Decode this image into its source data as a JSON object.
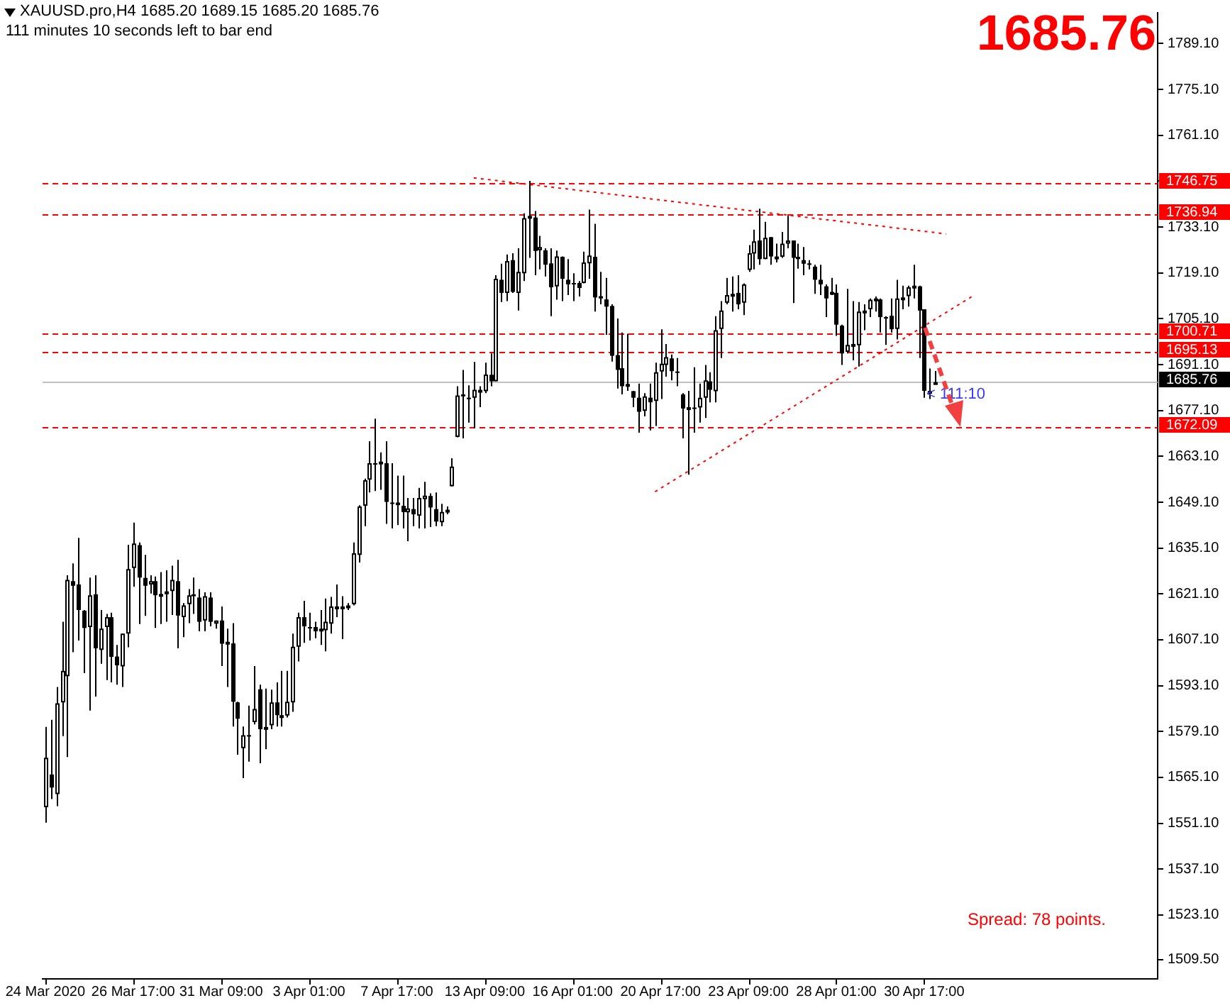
{
  "chart_data": {
    "type": "candlestick",
    "title": "XAUUSD.pro,H4  1685.20 1689.15 1685.20 1685.76",
    "subtitle": "111 minutes 10 seconds left to bar end",
    "color": "#000000",
    "categories": [
      "24 Mar 2020",
      null,
      null,
      null,
      null,
      null,
      null,
      null,
      null,
      null,
      null,
      null,
      null,
      null,
      null,
      null,
      "26 Mar 17:00",
      null,
      null,
      null,
      null,
      null,
      null,
      null,
      null,
      null,
      null,
      null,
      null,
      null,
      null,
      null,
      "31 Mar 09:00",
      null,
      null,
      null,
      null,
      null,
      null,
      null,
      null,
      null,
      null,
      null,
      null,
      null,
      null,
      null,
      "3 Apr 01:00",
      null,
      null,
      null,
      null,
      null,
      null,
      null,
      null,
      null,
      null,
      null,
      null,
      null,
      null,
      null,
      "7 Apr 17:00",
      null,
      null,
      null,
      null,
      null,
      null,
      null,
      null,
      null,
      null,
      null,
      null,
      null,
      null,
      null,
      "13 Apr 09:00",
      null,
      null,
      null,
      null,
      null,
      null,
      null,
      null,
      null,
      null,
      null,
      null,
      null,
      null,
      null,
      "16 Apr 01:00",
      null,
      null,
      null,
      null,
      null,
      null,
      null,
      null,
      null,
      null,
      null,
      null,
      null,
      null,
      null,
      "20 Apr 17:00",
      null,
      null,
      null,
      null,
      null,
      null,
      null,
      null,
      null,
      null,
      null,
      null,
      null,
      null,
      null,
      "23 Apr 09:00",
      null,
      null,
      null,
      null,
      null,
      null,
      null,
      null,
      null,
      null,
      null,
      null,
      null,
      null,
      null,
      "28 Apr 01:00",
      null,
      null,
      null,
      null,
      null,
      null,
      null,
      null,
      null,
      null,
      null,
      null,
      null,
      null,
      null,
      "30 Apr 17:00",
      null,
      null,
      null,
      null,
      null,
      null,
      null,
      null,
      null,
      null,
      null,
      null,
      null,
      null,
      null,
      null,
      null,
      null,
      null,
      null,
      null,
      null,
      null,
      null,
      null,
      null,
      null,
      null,
      null,
      null,
      null,
      null,
      null,
      null,
      null,
      null,
      null,
      null,
      null,
      null,
      null,
      null
    ],
    "ohlc": [
      [
        1556,
        1580.5,
        1551.3,
        1571.1
      ],
      [
        1566,
        1582.7,
        1558.5,
        1562
      ],
      [
        1560,
        1592.7,
        1556.3,
        1587.7
      ],
      [
        1588,
        1612.6,
        1577.7,
        1597.6
      ],
      [
        1596,
        1626.8,
        1571.3,
        1625.4
      ],
      [
        1625,
        1630.4,
        1603.3,
        1623.6
      ],
      [
        1624,
        1638.2,
        1606.9,
        1616.2
      ],
      [
        1616,
        1616.2,
        1596.9,
        1610.7
      ],
      [
        1611,
        1626.1,
        1585.5,
        1620.7
      ],
      [
        1621,
        1626.8,
        1589.8,
        1604.5
      ],
      [
        1604,
        1616.2,
        1599.8,
        1610.5
      ],
      [
        1611,
        1615,
        1594.8,
        1614
      ],
      [
        1614,
        1615.4,
        1594.1,
        1601.9
      ],
      [
        1602,
        1605.5,
        1593.4,
        1599.3
      ],
      [
        1599,
        1609,
        1592.7,
        1609
      ],
      [
        1609,
        1636.1,
        1604.8,
        1628.7
      ],
      [
        1629,
        1642.9,
        1623.3,
        1636.5
      ],
      [
        1636,
        1636.8,
        1611.9,
        1626.1
      ],
      [
        1626,
        1633,
        1614.4,
        1623.6
      ],
      [
        1624,
        1626.8,
        1621.2,
        1625
      ],
      [
        1625,
        1626.4,
        1610.7,
        1620.7
      ],
      [
        1621,
        1627.8,
        1611.9,
        1621.1
      ],
      [
        1621,
        1628.3,
        1612.6,
        1621.9
      ],
      [
        1622,
        1629.7,
        1614.7,
        1625.4
      ],
      [
        1625,
        1631.5,
        1604.5,
        1614.5
      ],
      [
        1614,
        1618.3,
        1607.9,
        1617.6
      ],
      [
        1618,
        1622.6,
        1612.2,
        1620.7
      ],
      [
        1621,
        1626.1,
        1615,
        1620.4
      ],
      [
        1620,
        1622.6,
        1609.7,
        1612.6
      ],
      [
        1613,
        1621.6,
        1609.7,
        1620.4
      ],
      [
        1620,
        1621.6,
        1611.2,
        1612.6
      ],
      [
        1612,
        1613,
        1610.5,
        1613
      ],
      [
        1613,
        1617.3,
        1599.1,
        1605.9
      ],
      [
        1606,
        1610.5,
        1592.7,
        1606.5
      ],
      [
        1606,
        1612.2,
        1580.6,
        1588.2
      ],
      [
        1588,
        1588.2,
        1572,
        1583
      ],
      [
        1574,
        1580.6,
        1564.9,
        1578
      ],
      [
        1578,
        1587,
        1569.9,
        1578
      ],
      [
        1582,
        1599.1,
        1581.3,
        1586
      ],
      [
        1592,
        1593.4,
        1569.4,
        1579.8
      ],
      [
        1580,
        1592.2,
        1573.7,
        1580.5
      ],
      [
        1581,
        1591.9,
        1579.8,
        1588
      ],
      [
        1588,
        1594.1,
        1580.6,
        1584.1
      ],
      [
        1584,
        1597.6,
        1580.6,
        1584.1
      ],
      [
        1584,
        1597.6,
        1583.4,
        1588.2
      ],
      [
        1588,
        1609,
        1585.1,
        1605
      ],
      [
        1605,
        1615.4,
        1600.5,
        1614
      ],
      [
        1614,
        1619,
        1606.2,
        1611.2
      ],
      [
        1611,
        1615.4,
        1606.9,
        1610.7
      ],
      [
        1611,
        1612.6,
        1607.6,
        1609.7
      ],
      [
        1610,
        1616.2,
        1605.5,
        1610.5
      ],
      [
        1610,
        1619.7,
        1603.6,
        1612.6
      ],
      [
        1612,
        1620.2,
        1609,
        1617.3
      ],
      [
        1617,
        1624,
        1614,
        1617.3
      ],
      [
        1617,
        1620.4,
        1607.3,
        1617.3
      ],
      [
        1617,
        1618.3,
        1616.2,
        1617.6
      ],
      [
        1618,
        1636.8,
        1617.6,
        1633.5
      ],
      [
        1633,
        1648.2,
        1630.7,
        1647.8
      ],
      [
        1648,
        1656.3,
        1641.8,
        1655.8
      ],
      [
        1656,
        1667.7,
        1652.1,
        1661
      ],
      [
        1661,
        1674.6,
        1652.5,
        1660.6
      ],
      [
        1661,
        1664.3,
        1652.9,
        1661.5
      ],
      [
        1661,
        1667.7,
        1642.5,
        1649.2
      ],
      [
        1649,
        1661,
        1641.1,
        1648.9
      ],
      [
        1649,
        1657.2,
        1642.1,
        1648.2
      ],
      [
        1648,
        1657.2,
        1641.1,
        1646.1
      ],
      [
        1646,
        1650.4,
        1637.2,
        1647.2
      ],
      [
        1647,
        1650.4,
        1641.8,
        1645.4
      ],
      [
        1645,
        1653.5,
        1641.1,
        1650.4
      ],
      [
        1650,
        1655.3,
        1641.1,
        1651.1
      ],
      [
        1651,
        1651.8,
        1641.5,
        1647.5
      ],
      [
        1647,
        1652.1,
        1641.8,
        1643.2
      ],
      [
        1643,
        1648.6,
        1641.8,
        1646.1
      ],
      [
        1646,
        1647.8,
        1645.4,
        1646.8
      ],
      [
        1654,
        1662.5,
        1653.9,
        1660
      ],
      [
        1669,
        1684.5,
        1668.9,
        1681.7
      ],
      [
        1682,
        1689.5,
        1668.6,
        1681.4
      ],
      [
        1681,
        1684.8,
        1673.4,
        1681
      ],
      [
        1681,
        1691.9,
        1671.7,
        1683.4
      ],
      [
        1683,
        1684.5,
        1678.1,
        1683.4
      ],
      [
        1683,
        1691.7,
        1682.4,
        1688.1
      ],
      [
        1688,
        1694.5,
        1684.5,
        1686
      ],
      [
        1686,
        1718.4,
        1686,
        1717.3
      ],
      [
        1717,
        1721.9,
        1710.2,
        1713
      ],
      [
        1713,
        1724.7,
        1710.5,
        1722.7
      ],
      [
        1723,
        1725.1,
        1713,
        1713.3
      ],
      [
        1713,
        1726.6,
        1707.6,
        1719.4
      ],
      [
        1719,
        1737.3,
        1716.6,
        1735.8
      ],
      [
        1736,
        1747.2,
        1723.7,
        1736.5
      ],
      [
        1736,
        1738,
        1718.4,
        1725.8
      ],
      [
        1726,
        1730.4,
        1720.2,
        1727
      ],
      [
        1726,
        1726.6,
        1718,
        1721.6
      ],
      [
        1722,
        1726.6,
        1705.9,
        1714.7
      ],
      [
        1715,
        1725.9,
        1710.9,
        1724.1
      ],
      [
        1724,
        1724.1,
        1710.5,
        1717.3
      ],
      [
        1717,
        1723.3,
        1712.3,
        1715.6
      ],
      [
        1716,
        1719,
        1710.5,
        1715.6
      ],
      [
        1716,
        1716.6,
        1711.9,
        1714.5
      ],
      [
        1716,
        1725.6,
        1715.9,
        1722.3
      ],
      [
        1722,
        1738.4,
        1717.3,
        1724.4
      ],
      [
        1724,
        1734.1,
        1707.3,
        1711.6
      ],
      [
        1712,
        1719.4,
        1709.5,
        1711.3
      ],
      [
        1711,
        1717.6,
        1700.2,
        1708.8
      ],
      [
        1709,
        1709.5,
        1692,
        1693.8
      ],
      [
        1694,
        1705.2,
        1683.8,
        1689.5
      ],
      [
        1690,
        1700.9,
        1682,
        1684.5
      ],
      [
        1685,
        1700.5,
        1683.1,
        1685.2
      ],
      [
        1683,
        1683.1,
        1678.1,
        1681
      ],
      [
        1681,
        1685.3,
        1670.3,
        1676.7
      ],
      [
        1677,
        1682.4,
        1675.3,
        1681.4
      ],
      [
        1681,
        1685.3,
        1671,
        1679.6
      ],
      [
        1680,
        1691.7,
        1672.4,
        1688.8
      ],
      [
        1689,
        1701.9,
        1680.6,
        1691.4
      ],
      [
        1691,
        1697.4,
        1687.4,
        1693.4
      ],
      [
        1693,
        1694.2,
        1686.3,
        1689.1
      ],
      [
        1689,
        1693.1,
        1684.5,
        1688.8
      ],
      [
        1682,
        1682.4,
        1668.6,
        1677.7
      ],
      [
        1678,
        1683.1,
        1657.5,
        1678.1
      ],
      [
        1678,
        1690.3,
        1670.3,
        1677.7
      ],
      [
        1678,
        1685.3,
        1673.4,
        1681
      ],
      [
        1681,
        1691,
        1674.8,
        1686.3
      ],
      [
        1686,
        1688.8,
        1679.6,
        1683.4
      ],
      [
        1683,
        1705.9,
        1679.6,
        1701.6
      ],
      [
        1702,
        1710.5,
        1693.1,
        1707.6
      ],
      [
        1710,
        1717.6,
        1709.5,
        1712.3
      ],
      [
        1712,
        1718,
        1707.3,
        1712.7
      ],
      [
        1713,
        1718.4,
        1708,
        1709.5
      ],
      [
        1710,
        1715.9,
        1706.2,
        1715.6
      ],
      [
        1720,
        1727.6,
        1719.4,
        1725.1
      ],
      [
        1725,
        1732.3,
        1720.2,
        1728.7
      ],
      [
        1729,
        1738.7,
        1721.6,
        1723.3
      ],
      [
        1723.3,
        1734.7,
        1723.3,
        1729.8
      ],
      [
        1730,
        1730.1,
        1721.6,
        1724.1
      ],
      [
        1724,
        1728,
        1722.3,
        1724.1
      ],
      [
        1724,
        1731.6,
        1723.7,
        1728
      ],
      [
        1728,
        1736.5,
        1726.6,
        1729
      ],
      [
        1729,
        1729,
        1709.9,
        1723.7
      ],
      [
        1724,
        1728,
        1720.4,
        1723.3
      ],
      [
        1723,
        1727,
        1718.4,
        1721.9
      ],
      [
        1722,
        1723,
        1720.2,
        1721.6
      ],
      [
        1721,
        1721.6,
        1712.7,
        1717
      ],
      [
        1717,
        1721.6,
        1712.3,
        1715.6
      ],
      [
        1715,
        1715.6,
        1705.6,
        1711.3
      ],
      [
        1713,
        1717.6,
        1712.3,
        1713.3
      ],
      [
        1713,
        1715.6,
        1699.9,
        1703.3
      ],
      [
        1703,
        1703.3,
        1691,
        1694.5
      ],
      [
        1695,
        1714.2,
        1694.5,
        1697.1
      ],
      [
        1697,
        1710.5,
        1692.4,
        1697.4
      ],
      [
        1697,
        1710.2,
        1690.5,
        1707.3
      ],
      [
        1707,
        1709.5,
        1701.6,
        1707.6
      ],
      [
        1708,
        1711.3,
        1705.6,
        1710.9
      ],
      [
        1711,
        1711.9,
        1707.3,
        1711.3
      ],
      [
        1711,
        1711.3,
        1700.9,
        1705.6
      ],
      [
        1705.6,
        1705.9,
        1697.1,
        1705.6
      ],
      [
        1706,
        1711.3,
        1700.9,
        1701.9
      ],
      [
        1702,
        1717,
        1698.8,
        1711.3
      ],
      [
        1711,
        1715.2,
        1708,
        1711.6
      ],
      [
        1712,
        1715.2,
        1708.8,
        1714.7
      ],
      [
        1715,
        1721.6,
        1711.3,
        1715.2
      ],
      [
        1715,
        1715.2,
        1693.1,
        1707.6
      ],
      [
        1708,
        1708,
        1681,
        1683.1
      ],
      [
        1683,
        1689.9,
        1680.6,
        1683.1
      ],
      [
        1685.2,
        1689.15,
        1685.2,
        1685.76
      ],
      null,
      null,
      null,
      null,
      null,
      null,
      null,
      null,
      null,
      null,
      null,
      null,
      null,
      null,
      null,
      null,
      null,
      null,
      null,
      null,
      null,
      null,
      null,
      null,
      null,
      null,
      null,
      null,
      null,
      null,
      null,
      null,
      null,
      null,
      null,
      null,
      null,
      null,
      null,
      null
    ],
    "series": [
      {
        "type": "line",
        "color": "#ff0000",
        "line_style": "dotted",
        "values": [
          null,
          null,
          null,
          null,
          null,
          null,
          null,
          null,
          null,
          null,
          null,
          null,
          null,
          null,
          null,
          null,
          null,
          null,
          null,
          null,
          null,
          null,
          null,
          null,
          null,
          null,
          null,
          null,
          null,
          null,
          null,
          null,
          null,
          null,
          null,
          null,
          null,
          null,
          null,
          null,
          null,
          null,
          null,
          null,
          null,
          null,
          null,
          null,
          null,
          null,
          null,
          null,
          null,
          null,
          null,
          null,
          null,
          null,
          null,
          null,
          null,
          null,
          null,
          null,
          null,
          null,
          null,
          null,
          null,
          null,
          null,
          null,
          null,
          null,
          null,
          null,
          null,
          null,
          1748.1,
          null,
          null,
          null,
          null,
          null,
          null,
          null,
          null,
          null,
          null,
          null,
          null,
          null,
          null,
          null,
          null,
          null,
          null,
          null,
          null,
          null,
          null,
          null,
          null,
          null,
          null,
          null,
          null,
          null,
          null,
          null,
          null,
          null,
          null,
          null,
          null,
          null,
          null,
          null,
          null,
          null,
          null,
          null,
          null,
          null,
          null,
          null,
          null,
          null,
          null,
          null,
          null,
          null,
          null,
          null,
          null,
          null,
          null,
          null,
          null,
          null,
          null,
          null,
          null,
          null,
          null,
          null,
          null,
          null,
          null,
          null,
          null,
          null,
          null,
          null,
          null,
          null,
          null,
          null,
          null,
          null,
          null,
          null,
          null,
          null,
          1731.0,
          null,
          null,
          null,
          null,
          null,
          null,
          null,
          null,
          null,
          null,
          null,
          null,
          null,
          null,
          null,
          null,
          null,
          null,
          null,
          null,
          null,
          null,
          null,
          null,
          null,
          null,
          null,
          null,
          null,
          null,
          null,
          null,
          null,
          null,
          null,
          null,
          null,
          null
        ]
      },
      {
        "type": "line",
        "color": "#ff0000",
        "line_style": "dotted",
        "values": [
          null,
          null,
          null,
          null,
          null,
          null,
          null,
          null,
          null,
          null,
          null,
          null,
          null,
          null,
          null,
          null,
          null,
          null,
          null,
          null,
          null,
          null,
          null,
          null,
          null,
          null,
          null,
          null,
          null,
          null,
          null,
          null,
          null,
          null,
          null,
          null,
          null,
          null,
          null,
          null,
          null,
          null,
          null,
          null,
          null,
          null,
          null,
          null,
          null,
          null,
          null,
          null,
          null,
          null,
          null,
          null,
          null,
          null,
          null,
          null,
          null,
          null,
          null,
          null,
          null,
          null,
          null,
          null,
          null,
          null,
          null,
          null,
          null,
          null,
          null,
          null,
          null,
          null,
          null,
          null,
          null,
          null,
          null,
          null,
          null,
          null,
          null,
          null,
          null,
          null,
          null,
          null,
          null,
          null,
          null,
          null,
          null,
          null,
          null,
          null,
          null,
          null,
          null,
          null,
          null,
          null,
          null,
          null,
          null,
          null,
          null,
          1652.3,
          null,
          null,
          null,
          null,
          null,
          null,
          null,
          null,
          null,
          null,
          null,
          null,
          null,
          null,
          null,
          null,
          null,
          null,
          null,
          null,
          null,
          null,
          null,
          null,
          null,
          null,
          null,
          null,
          null,
          null,
          null,
          null,
          null,
          null,
          null,
          null,
          null,
          null,
          null,
          null,
          null,
          null,
          null,
          null,
          null,
          null,
          null,
          null,
          null,
          null,
          null,
          null,
          null,
          null,
          null,
          null,
          null,
          1712.2,
          null,
          null,
          null,
          null,
          null,
          null,
          null,
          null,
          null,
          null,
          null,
          null,
          null,
          null,
          null,
          null,
          null,
          null,
          null,
          null,
          null,
          null,
          null,
          null,
          null,
          null,
          null,
          null,
          null,
          null,
          null,
          null,
          null
        ]
      }
    ],
    "ylim": [
      1503.6,
      1798.5
    ],
    "yticks": [
      {
        "value": 1789.1,
        "label": "1789.10"
      },
      {
        "value": 1775.1,
        "label": "1775.10"
      },
      {
        "value": 1761.1,
        "label": "1761.10"
      },
      {
        "value": 1747.1,
        "label": null
      },
      {
        "value": 1733.1,
        "label": "1733.10"
      },
      {
        "value": 1719.1,
        "label": "1719.10"
      },
      {
        "value": 1705.1,
        "label": "1705.10"
      },
      {
        "value": 1691.1,
        "label": "1691.10"
      },
      {
        "value": 1677.1,
        "label": "1677.10"
      },
      {
        "value": 1663.1,
        "label": "1663.10"
      },
      {
        "value": 1649.1,
        "label": "1649.10"
      },
      {
        "value": 1635.1,
        "label": "1635.10"
      },
      {
        "value": 1621.1,
        "label": "1621.10"
      },
      {
        "value": 1607.1,
        "label": "1607.10"
      },
      {
        "value": 1593.1,
        "label": "1593.10"
      },
      {
        "value": 1579.1,
        "label": "1579.10"
      },
      {
        "value": 1565.1,
        "label": "1565.10"
      },
      {
        "value": 1551.1,
        "label": "1551.10"
      },
      {
        "value": 1537.1,
        "label": "1537.10"
      },
      {
        "value": 1523.1,
        "label": "1523.10"
      },
      {
        "value": 1509.5,
        "label": "1509.50"
      }
    ],
    "ref_lines": [
      {
        "axis": "y",
        "value": 1746.75,
        "label": "1746.75",
        "color": "#ff0000",
        "line_style": "dashed"
      },
      {
        "axis": "y",
        "value": 1736.94,
        "label": "1736.94",
        "color": "#ff0000",
        "line_style": "dashed"
      },
      {
        "axis": "y",
        "value": 1700.71,
        "label": "1700.71",
        "color": "#ff0000",
        "line_style": "dashed"
      },
      {
        "axis": "y",
        "value": 1695.13,
        "label": "1695.13",
        "color": "#ff0000",
        "line_style": "dashed"
      },
      {
        "axis": "y",
        "value": 1672.09,
        "label": "1672.09",
        "color": "#ff0000",
        "line_style": "dashed"
      },
      {
        "axis": "y",
        "value": 1685.76,
        "label": "1685.76",
        "color": "#c0c0c0",
        "line_style": "solid"
      }
    ],
    "annotations": [
      "1685.76",
      {
        "text": "< 111:10",
        "y": 1685.76
      },
      "Spread: 78 points."
    ]
  }
}
